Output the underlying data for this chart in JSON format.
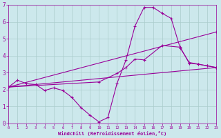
{
  "xlabel": "Windchill (Refroidissement éolien,°C)",
  "bg_color": "#cce8ec",
  "line_color": "#990099",
  "grid_color": "#aacccc",
  "xlim": [
    0,
    23
  ],
  "ylim": [
    0,
    7
  ],
  "xticks": [
    0,
    1,
    2,
    3,
    4,
    5,
    6,
    7,
    8,
    9,
    10,
    11,
    12,
    13,
    14,
    15,
    16,
    17,
    18,
    19,
    20,
    21,
    22,
    23
  ],
  "yticks": [
    0,
    1,
    2,
    3,
    4,
    5,
    6,
    7
  ],
  "line1_x": [
    0,
    1,
    2,
    3,
    4,
    5,
    6,
    7,
    8,
    9,
    10,
    11,
    12,
    13,
    14,
    15,
    16,
    17,
    18,
    19,
    20,
    21,
    22,
    23
  ],
  "line1_y": [
    2.15,
    2.55,
    2.35,
    2.3,
    1.95,
    2.1,
    1.95,
    1.55,
    0.95,
    0.5,
    0.1,
    0.35,
    2.35,
    3.75,
    5.75,
    6.85,
    6.85,
    6.5,
    6.2,
    4.45,
    3.6,
    3.5,
    3.4,
    3.3
  ],
  "line2_x": [
    0,
    23
  ],
  "line2_y": [
    2.15,
    3.3
  ],
  "line3_x": [
    0,
    23
  ],
  "line3_y": [
    2.15,
    5.4
  ],
  "line4_x": [
    0,
    10,
    12,
    13,
    14,
    15,
    17,
    19,
    20,
    21,
    22,
    23
  ],
  "line4_y": [
    2.15,
    2.45,
    2.95,
    3.3,
    3.8,
    3.75,
    4.6,
    4.5,
    3.55,
    3.5,
    3.4,
    3.3
  ]
}
